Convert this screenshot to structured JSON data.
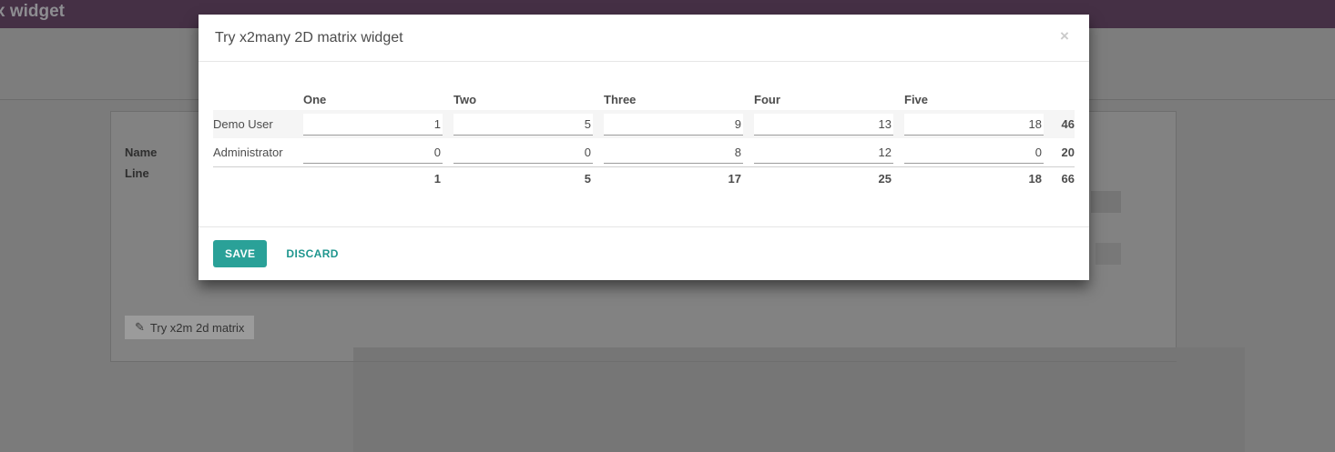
{
  "navbar": {
    "title": "x widget"
  },
  "icons": {
    "close": "×",
    "edit": "✎"
  },
  "background": {
    "field_labels": [
      "Name",
      "Line"
    ],
    "matrix_button_label": "Try x2m 2d matrix"
  },
  "modal": {
    "title": "Try x2many 2D matrix widget",
    "matrix": {
      "column_headers": [
        "One",
        "Two",
        "Three",
        "Four",
        "Five"
      ],
      "rows": [
        {
          "label": "Demo User",
          "values": [
            "1",
            "5",
            "9",
            "13",
            "18"
          ],
          "total": "46"
        },
        {
          "label": "Administrator",
          "values": [
            "0",
            "0",
            "8",
            "12",
            "0"
          ],
          "total": "20"
        }
      ],
      "column_totals": [
        "1",
        "5",
        "17",
        "25",
        "18"
      ],
      "grand_total": "66"
    },
    "footer": {
      "save_label": "SAVE",
      "discard_label": "DISCARD"
    }
  },
  "colors": {
    "accent_teal": "#2aa198",
    "navbar_purple": "#453045",
    "stripe_gray": "#f5f5f5"
  }
}
